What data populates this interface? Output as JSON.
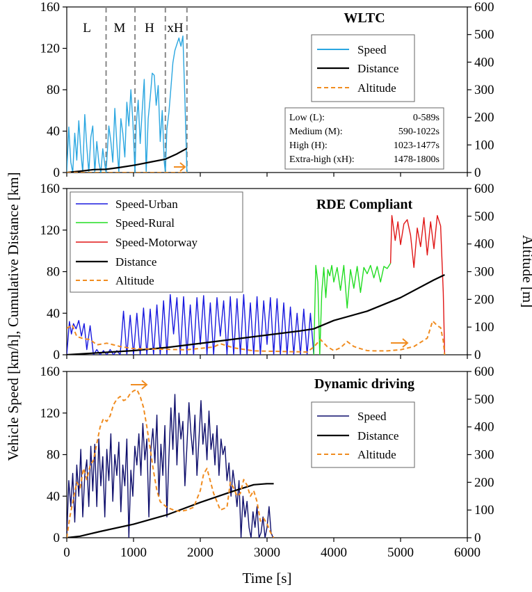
{
  "colors": {
    "wltc_speed": "#2aa6e0",
    "urban": "#1a1adf",
    "rural": "#22dd22",
    "motorway": "#e01515",
    "dynamic_speed": "#0d0d6b",
    "distance": "#000000",
    "altitude": "#f08c20",
    "divider": "#888888"
  },
  "chart_data": [
    {
      "type": "line",
      "title": "WLTC",
      "xlabel": "Time [s]",
      "ylabel": "Vehicle Speed [km/h], Cumulative Distance [km]",
      "y2label": "Altitude [m]",
      "xlim": [
        0,
        6000
      ],
      "ylim": [
        0,
        160
      ],
      "y2lim": [
        0,
        600
      ],
      "xticks": [
        0,
        1000,
        2000,
        3000,
        4000,
        5000,
        6000
      ],
      "yticks": [
        0,
        40,
        80,
        120,
        160
      ],
      "y2ticks": [
        0,
        100,
        200,
        300,
        400,
        500,
        600
      ],
      "segment_labels": [
        "L",
        "M",
        "H",
        "xH"
      ],
      "segment_bounds": [
        589,
        1022,
        1477,
        1800
      ],
      "legend": [
        "Speed",
        "Distance",
        "Altitude"
      ],
      "phase_table": [
        {
          "name": "Low (L):",
          "range": "0-589s"
        },
        {
          "name": "Medium (M):",
          "range": "590-1022s"
        },
        {
          "name": "High (H):",
          "range": "1023-1477s"
        },
        {
          "name": "Extra-high (xH):",
          "range": "1478-1800s"
        }
      ],
      "series": [
        {
          "name": "Speed",
          "axis": "left",
          "x": [
            0,
            30,
            60,
            90,
            120,
            150,
            180,
            210,
            240,
            270,
            300,
            330,
            360,
            390,
            420,
            450,
            480,
            510,
            540,
            570,
            589,
            600,
            630,
            660,
            690,
            720,
            750,
            780,
            810,
            840,
            870,
            900,
            930,
            960,
            990,
            1022,
            1040,
            1070,
            1100,
            1130,
            1160,
            1190,
            1220,
            1250,
            1280,
            1310,
            1340,
            1370,
            1400,
            1430,
            1460,
            1477,
            1500,
            1530,
            1560,
            1590,
            1620,
            1650,
            1680,
            1710,
            1740,
            1770,
            1800
          ],
          "values": [
            0,
            44,
            10,
            0,
            38,
            12,
            50,
            20,
            0,
            56,
            25,
            0,
            34,
            45,
            0,
            30,
            10,
            0,
            23,
            8,
            0,
            12,
            45,
            30,
            10,
            62,
            28,
            0,
            52,
            38,
            15,
            68,
            45,
            80,
            50,
            0,
            45,
            70,
            28,
            60,
            90,
            0,
            52,
            72,
            96,
            94,
            65,
            84,
            30,
            60,
            10,
            0,
            42,
            58,
            82,
            106,
            118,
            124,
            130,
            122,
            132,
            70,
            0
          ]
        },
        {
          "name": "Distance",
          "axis": "left",
          "x": [
            0,
            200,
            400,
            589,
            800,
            1022,
            1250,
            1477,
            1650,
            1800
          ],
          "values": [
            0,
            1.3,
            2.8,
            3.1,
            5.0,
            7.2,
            10.1,
            12.9,
            18.0,
            23.3
          ]
        },
        {
          "name": "Altitude",
          "axis": "right",
          "x": [
            0,
            1800
          ],
          "values": [
            0,
            0
          ]
        }
      ]
    },
    {
      "type": "line",
      "title": "RDE Compliant",
      "xlim": [
        0,
        6000
      ],
      "ylim": [
        0,
        160
      ],
      "y2lim": [
        0,
        600
      ],
      "xticks": [
        0,
        1000,
        2000,
        3000,
        4000,
        5000,
        6000
      ],
      "yticks": [
        0,
        40,
        80,
        120,
        160
      ],
      "y2ticks": [
        0,
        100,
        200,
        300,
        400,
        500,
        600
      ],
      "y2label": "Altitude [m]",
      "legend": [
        "Speed-Urban",
        "Speed-Rural",
        "Speed-Motorway",
        "Distance",
        "Altitude"
      ],
      "series": [
        {
          "name": "Speed-Urban",
          "axis": "left",
          "x": [
            0,
            40,
            70,
            100,
            140,
            180,
            220,
            260,
            300,
            350,
            400,
            450,
            500,
            550,
            600,
            650,
            700,
            750,
            800,
            850,
            900,
            950,
            1000,
            1050,
            1100,
            1150,
            1200,
            1250,
            1300,
            1350,
            1400,
            1450,
            1500,
            1550,
            1600,
            1650,
            1700,
            1750,
            1800,
            1850,
            1900,
            1950,
            2000,
            2050,
            2100,
            2150,
            2200,
            2250,
            2300,
            2350,
            2400,
            2450,
            2500,
            2550,
            2600,
            2650,
            2700,
            2750,
            2800,
            2850,
            2900,
            2950,
            3000,
            3050,
            3100,
            3150,
            3200,
            3250,
            3300,
            3350,
            3400,
            3450,
            3500,
            3550,
            3600,
            3650,
            3700
          ],
          "values": [
            0,
            32,
            20,
            30,
            25,
            33,
            18,
            30,
            5,
            28,
            0,
            5,
            0,
            4,
            0,
            5,
            0,
            4,
            0,
            42,
            0,
            38,
            0,
            40,
            0,
            45,
            0,
            44,
            0,
            48,
            0,
            52,
            0,
            58,
            20,
            55,
            0,
            56,
            0,
            48,
            0,
            55,
            10,
            57,
            0,
            50,
            0,
            55,
            18,
            52,
            0,
            56,
            0,
            54,
            0,
            58,
            0,
            50,
            0,
            56,
            0,
            52,
            10,
            55,
            0,
            54,
            0,
            50,
            0,
            46,
            0,
            40,
            0,
            44,
            0,
            40,
            0
          ]
        },
        {
          "name": "Speed-Rural",
          "axis": "left",
          "x": [
            3700,
            3730,
            3760,
            3790,
            3820,
            3850,
            3880,
            3910,
            3940,
            3970,
            4000,
            4050,
            4100,
            4150,
            4200,
            4250,
            4300,
            4350,
            4400,
            4450,
            4500,
            4550,
            4600,
            4650,
            4700,
            4750,
            4800,
            4850
          ],
          "values": [
            0,
            86,
            70,
            0,
            60,
            84,
            55,
            82,
            76,
            86,
            70,
            84,
            62,
            86,
            45,
            82,
            64,
            85,
            60,
            84,
            78,
            86,
            74,
            85,
            70,
            85,
            83,
            88
          ]
        },
        {
          "name": "Speed-Motorway",
          "axis": "left",
          "x": [
            4850,
            4870,
            4920,
            4960,
            5000,
            5050,
            5100,
            5150,
            5200,
            5250,
            5300,
            5350,
            5400,
            5450,
            5500,
            5550,
            5600,
            5640,
            5660
          ],
          "values": [
            88,
            134,
            110,
            128,
            106,
            126,
            130,
            115,
            84,
            122,
            104,
            132,
            96,
            128,
            102,
            134,
            124,
            60,
            0
          ]
        },
        {
          "name": "Distance",
          "axis": "left",
          "x": [
            0,
            500,
            1000,
            1500,
            2000,
            2500,
            3000,
            3500,
            3700,
            4000,
            4500,
            5000,
            5500,
            5660
          ],
          "values": [
            0,
            2,
            4,
            7,
            11,
            15,
            19,
            23,
            25,
            33,
            42,
            55,
            72,
            77
          ]
        },
        {
          "name": "Altitude",
          "axis": "right",
          "x": [
            0,
            80,
            150,
            250,
            350,
            450,
            600,
            800,
            1000,
            1400,
            1800,
            2200,
            2300,
            2500,
            2800,
            3200,
            3600,
            3700,
            3800,
            3900,
            4000,
            4100,
            4200,
            4300,
            4400,
            4500,
            4600,
            4800,
            5000,
            5200,
            5400,
            5480,
            5550,
            5600,
            5640,
            5660
          ],
          "values": [
            95,
            108,
            66,
            58,
            55,
            36,
            42,
            30,
            22,
            20,
            18,
            28,
            40,
            25,
            14,
            12,
            10,
            28,
            55,
            30,
            15,
            25,
            48,
            30,
            22,
            15,
            14,
            14,
            18,
            30,
            60,
            122,
            105,
            98,
            50,
            0
          ]
        }
      ]
    },
    {
      "type": "line",
      "title": "Dynamic driving",
      "xlim": [
        0,
        6000
      ],
      "ylim": [
        0,
        160
      ],
      "y2lim": [
        0,
        600
      ],
      "xticks": [
        0,
        1000,
        2000,
        3000,
        4000,
        5000,
        6000
      ],
      "yticks": [
        0,
        40,
        80,
        120,
        160
      ],
      "y2ticks": [
        0,
        100,
        200,
        300,
        400,
        500,
        600
      ],
      "legend": [
        "Speed",
        "Distance",
        "Altitude"
      ],
      "series": [
        {
          "name": "Speed",
          "axis": "left",
          "x": [
            0,
            30,
            60,
            90,
            120,
            150,
            180,
            210,
            240,
            270,
            300,
            330,
            360,
            390,
            420,
            450,
            480,
            510,
            540,
            570,
            600,
            630,
            660,
            690,
            720,
            750,
            780,
            810,
            840,
            870,
            900,
            930,
            960,
            990,
            1020,
            1050,
            1080,
            1110,
            1140,
            1170,
            1200,
            1230,
            1260,
            1290,
            1320,
            1350,
            1380,
            1410,
            1440,
            1470,
            1500,
            1530,
            1560,
            1590,
            1620,
            1650,
            1680,
            1710,
            1740,
            1770,
            1800,
            1830,
            1860,
            1890,
            1920,
            1950,
            1980,
            2010,
            2040,
            2070,
            2100,
            2130,
            2160,
            2190,
            2220,
            2250,
            2280,
            2310,
            2340,
            2370,
            2400,
            2430,
            2460,
            2490,
            2520,
            2550,
            2580,
            2610,
            2640,
            2670,
            2700,
            2730,
            2760,
            2790,
            2820,
            2850,
            2880,
            2910,
            2940,
            2970,
            3000,
            3030,
            3060,
            3090
          ],
          "values": [
            0,
            55,
            30,
            62,
            15,
            70,
            40,
            85,
            20,
            60,
            75,
            30,
            88,
            45,
            90,
            30,
            95,
            50,
            78,
            20,
            85,
            55,
            100,
            35,
            80,
            60,
            92,
            25,
            70,
            50,
            95,
            0,
            65,
            40,
            88,
            70,
            100,
            60,
            110,
            75,
            95,
            20,
            85,
            105,
            72,
            118,
            40,
            90,
            60,
            108,
            20,
            78,
            125,
            85,
            138,
            70,
            120,
            95,
            112,
            50,
            88,
            130,
            100,
            80,
            118,
            60,
            95,
            132,
            90,
            110,
            75,
            122,
            85,
            100,
            70,
            108,
            60,
            95,
            80,
            88,
            55,
            72,
            40,
            65,
            50,
            30,
            55,
            0,
            40,
            20,
            35,
            10,
            0,
            25,
            10,
            30,
            0,
            5,
            20,
            0,
            10,
            30,
            5,
            0
          ]
        },
        {
          "name": "Distance",
          "axis": "left",
          "x": [
            0,
            200,
            500,
            1000,
            1500,
            2000,
            2500,
            2800,
            3000,
            3100
          ],
          "values": [
            0,
            1.5,
            6,
            13,
            22,
            34,
            45,
            51,
            52,
            52
          ]
        },
        {
          "name": "Altitude",
          "axis": "right",
          "x": [
            0,
            50,
            100,
            150,
            200,
            250,
            300,
            350,
            400,
            450,
            500,
            550,
            600,
            650,
            700,
            750,
            800,
            850,
            900,
            950,
            1000,
            1050,
            1100,
            1150,
            1200,
            1250,
            1300,
            1350,
            1400,
            1500,
            1600,
            1700,
            1800,
            1900,
            2000,
            2050,
            2100,
            2200,
            2300,
            2400,
            2450,
            2500,
            2550,
            2600,
            2650,
            2700,
            2750,
            2800,
            2850,
            2900,
            2950,
            3000,
            3050,
            3100
          ],
          "values": [
            0,
            80,
            140,
            200,
            180,
            250,
            210,
            260,
            280,
            340,
            400,
            430,
            420,
            440,
            480,
            500,
            510,
            495,
            500,
            520,
            530,
            535,
            510,
            470,
            400,
            320,
            240,
            170,
            130,
            110,
            100,
            95,
            100,
            110,
            170,
            230,
            250,
            160,
            100,
            110,
            200,
            180,
            150,
            160,
            210,
            190,
            150,
            170,
            130,
            60,
            70,
            50,
            20,
            0
          ]
        }
      ]
    }
  ]
}
